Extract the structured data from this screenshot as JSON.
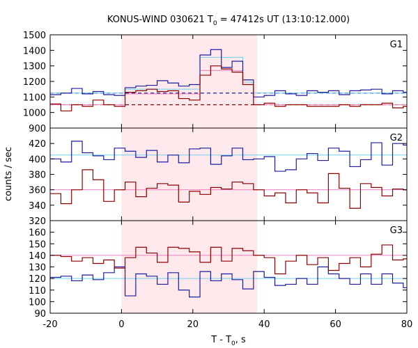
{
  "chart_data": {
    "type": "line",
    "title": {
      "prefix": "KONUS-WIND 030621 T",
      "sub": "0",
      "suffix": " = 47412s UT (13:10:12.000)"
    },
    "xlabel": {
      "prefix": "T - T",
      "sub": "0",
      "suffix": ", s"
    },
    "ylabel": "counts / sec",
    "xlim": [
      -20,
      80
    ],
    "xticks": [
      -20,
      0,
      20,
      40,
      60,
      80
    ],
    "shaded_interval": [
      0,
      38
    ],
    "colors": {
      "red": "#8b0000",
      "blue": "#1c1ca0",
      "cyan": "#6fd3ee",
      "pink": "#ee7fbf",
      "shade": "#fde8ec"
    },
    "bin_edges": [
      -20,
      -17,
      -14,
      -11,
      -8,
      -5,
      -2,
      1,
      4,
      7,
      10,
      13,
      16,
      19,
      22,
      25,
      28,
      31,
      34,
      37,
      40,
      43,
      46,
      49,
      52,
      55,
      58,
      61,
      64,
      67,
      70,
      73,
      76,
      79,
      80
    ],
    "panels": [
      {
        "label": "G1",
        "ylim": [
          900,
          1500
        ],
        "yticks": [
          900,
          1000,
          1100,
          1200,
          1300,
          1400,
          1500
        ],
        "series": [
          {
            "color": "blue",
            "values": [
              1115,
              1125,
              1155,
              1120,
              1135,
              1115,
              1110,
              1160,
              1170,
              1175,
              1205,
              1190,
              1170,
              1180,
              1370,
              1405,
              1290,
              1330,
              1210,
              1100,
              1110,
              1140,
              1120,
              1110,
              1140,
              1130,
              1140,
              1115,
              1140,
              1145,
              1150,
              1120,
              1140,
              1130
            ]
          },
          {
            "color": "red",
            "values": [
              1055,
              1010,
              1050,
              1040,
              1080,
              1050,
              1040,
              1130,
              1140,
              1150,
              1135,
              1140,
              1090,
              1080,
              1240,
              1300,
              1280,
              1260,
              1180,
              1050,
              1060,
              1040,
              1050,
              1050,
              1040,
              1040,
              1040,
              1050,
              1040,
              1050,
              1050,
              1060,
              1030,
              1040
            ]
          }
        ],
        "models": [
          {
            "color": "cyan",
            "values": [
              1125,
              1125,
              1125,
              1125,
              1125,
              1125,
              1125,
              1150,
              1150,
              1150,
              1150,
              1150,
              1150,
              1150,
              1355,
              1355,
              1355,
              1355,
              1195,
              1125,
              1125,
              1125,
              1125,
              1125,
              1125,
              1125,
              1125,
              1125,
              1125,
              1125,
              1125,
              1125,
              1125,
              1125
            ]
          },
          {
            "color": "pink",
            "values": [
              1050,
              1050,
              1050,
              1050,
              1050,
              1050,
              1050,
              1120,
              1120,
              1120,
              1120,
              1120,
              1120,
              1120,
              1270,
              1270,
              1270,
              1270,
              1180,
              1050,
              1050,
              1050,
              1050,
              1050,
              1050,
              1050,
              1050,
              1050,
              1050,
              1050,
              1050,
              1050,
              1050,
              1050
            ]
          }
        ],
        "backgrounds": [
          {
            "color": "blue",
            "value": 1125
          },
          {
            "color": "red",
            "value": 1050
          }
        ]
      },
      {
        "label": "G2",
        "ylim": [
          320,
          440
        ],
        "yticks": [
          320,
          340,
          360,
          380,
          400,
          420
        ],
        "series": [
          {
            "color": "blue",
            "values": [
              400,
              396,
              423,
              408,
              404,
              399,
              414,
              410,
              402,
              411,
              396,
              405,
              395,
              413,
              414,
              393,
              404,
              414,
              399,
              400,
              403,
              384,
              386,
              400,
              407,
              398,
              414,
              410,
              390,
              399,
              421,
              392,
              420,
              418
            ]
          },
          {
            "color": "red",
            "values": [
              355,
              342,
              360,
              386,
              373,
              345,
              360,
              370,
              351,
              362,
              368,
              366,
              344,
              358,
              354,
              363,
              361,
              370,
              368,
              360,
              352,
              356,
              343,
              360,
              356,
              343,
              381,
              362,
              336,
              368,
              363,
              352,
              361,
              360
            ]
          }
        ],
        "models": [
          {
            "color": "cyan",
            "values": [
              405,
              405,
              405,
              405,
              405,
              405,
              405,
              405,
              405,
              405,
              405,
              405,
              405,
              405,
              405,
              405,
              405,
              405,
              405,
              405,
              405,
              405,
              405,
              405,
              405,
              405,
              405,
              405,
              405,
              405,
              405,
              405,
              405,
              405
            ]
          },
          {
            "color": "pink",
            "values": [
              360,
              360,
              360,
              360,
              360,
              360,
              360,
              360,
              360,
              360,
              360,
              360,
              360,
              360,
              360,
              360,
              360,
              360,
              360,
              360,
              360,
              360,
              360,
              360,
              360,
              360,
              360,
              360,
              360,
              360,
              360,
              360,
              360,
              360
            ]
          }
        ],
        "backgrounds": []
      },
      {
        "label": "G3",
        "ylim": [
          90,
          170
        ],
        "yticks": [
          90,
          100,
          110,
          120,
          130,
          140,
          150,
          160
        ],
        "series": [
          {
            "color": "blue",
            "values": [
              121,
              122,
              118,
              123,
              119,
              125,
              130,
              105,
              124,
              122,
              115,
              125,
              110,
              104,
              126,
              118,
              124,
              119,
              111,
              126,
              121,
              114,
              115,
              120,
              115,
              130,
              124,
              120,
              115,
              124,
              115,
              124,
              116,
              112
            ]
          },
          {
            "color": "red",
            "values": [
              140,
              139,
              135,
              138,
              133,
              136,
              129,
              138,
              147,
              142,
              134,
              147,
              146,
              143,
              134,
              147,
              135,
              146,
              144,
              140,
              138,
              124,
              135,
              140,
              132,
              138,
              127,
              133,
              138,
              130,
              141,
              149,
              136,
              137
            ]
          }
        ],
        "models": [
          {
            "color": "cyan",
            "values": [
              120,
              120,
              120,
              120,
              120,
              120,
              120,
              120,
              120,
              120,
              120,
              120,
              120,
              120,
              120,
              120,
              120,
              120,
              120,
              120,
              120,
              120,
              120,
              120,
              120,
              120,
              120,
              120,
              120,
              120,
              120,
              120,
              120,
              120
            ]
          },
          {
            "color": "pink",
            "values": [
              140,
              140,
              140,
              140,
              140,
              140,
              140,
              140,
              140,
              140,
              140,
              140,
              140,
              140,
              140,
              140,
              140,
              140,
              140,
              140,
              140,
              140,
              140,
              140,
              140,
              140,
              140,
              140,
              140,
              140,
              140,
              140,
              140,
              140
            ]
          }
        ],
        "backgrounds": []
      }
    ]
  }
}
